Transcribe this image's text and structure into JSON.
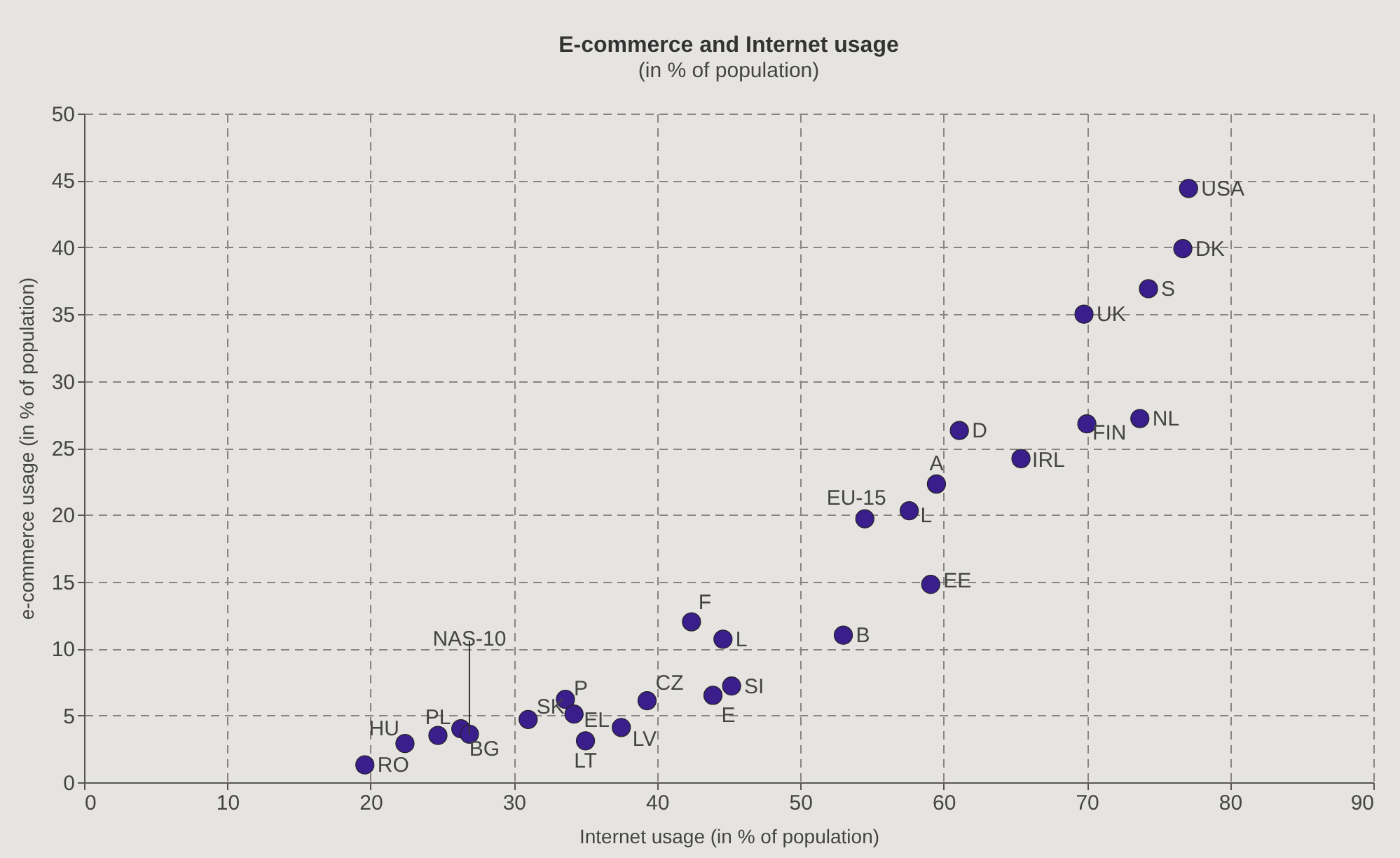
{
  "chart_data": {
    "type": "scatter",
    "title": "E-commerce and Internet usage",
    "subtitle": "(in % of population)",
    "xlabel": "Internet usage (in % of population)",
    "ylabel": "e-commerce usage (in % of population)",
    "x": [
      19.6,
      22.4,
      24.7,
      26.3,
      26.9,
      31.0,
      33.6,
      34.2,
      35.0,
      37.5,
      39.3,
      43.9,
      45.2,
      42.4,
      44.6,
      53.0,
      54.5,
      57.6,
      59.5,
      59.1,
      61.1,
      65.4,
      70.0,
      73.7,
      69.8,
      74.3,
      76.7,
      77.1
    ],
    "series": [
      {
        "color": "#3a1e8c",
        "values": [
          1.3,
          2.9,
          3.5,
          4.0,
          3.6,
          4.7,
          6.2,
          5.1,
          3.1,
          4.1,
          6.1,
          6.5,
          7.2,
          12.0,
          10.7,
          11.0,
          19.7,
          20.3,
          22.3,
          14.8,
          26.3,
          24.2,
          26.8,
          27.2,
          35.0,
          36.9,
          39.9,
          44.4
        ]
      }
    ],
    "annotations": [
      {
        "text": "RO",
        "x": 19.6,
        "y": 1.3
      },
      {
        "text": "HU",
        "x": 22.4,
        "y": 2.9
      },
      {
        "text": "PL",
        "x": 24.7,
        "y": 3.5
      },
      {
        "text": "BG",
        "x": 26.3,
        "y": 4.0
      },
      {
        "text": "NAS-10",
        "x": 26.9,
        "y": 3.6
      },
      {
        "text": "SK",
        "x": 31.0,
        "y": 4.7
      },
      {
        "text": "P",
        "x": 33.6,
        "y": 6.2
      },
      {
        "text": "EL",
        "x": 34.2,
        "y": 5.1
      },
      {
        "text": "LT",
        "x": 35.0,
        "y": 3.1
      },
      {
        "text": "LV",
        "x": 37.5,
        "y": 4.1
      },
      {
        "text": "CZ",
        "x": 39.3,
        "y": 6.1
      },
      {
        "text": "E",
        "x": 43.9,
        "y": 6.5
      },
      {
        "text": "SI",
        "x": 45.2,
        "y": 7.2
      },
      {
        "text": "F",
        "x": 42.4,
        "y": 12.0
      },
      {
        "text": "L",
        "x": 44.6,
        "y": 10.7
      },
      {
        "text": "B",
        "x": 53.0,
        "y": 11.0
      },
      {
        "text": "EU-15",
        "x": 54.5,
        "y": 19.7
      },
      {
        "text": "L",
        "x": 57.6,
        "y": 20.3
      },
      {
        "text": "A",
        "x": 59.5,
        "y": 22.3
      },
      {
        "text": "EE",
        "x": 59.1,
        "y": 14.8
      },
      {
        "text": "D",
        "x": 61.1,
        "y": 26.3
      },
      {
        "text": "IRL",
        "x": 65.4,
        "y": 24.2
      },
      {
        "text": "FIN",
        "x": 70.0,
        "y": 26.8
      },
      {
        "text": "NL",
        "x": 73.7,
        "y": 27.2
      },
      {
        "text": "UK",
        "x": 69.8,
        "y": 35.0
      },
      {
        "text": "S",
        "x": 74.3,
        "y": 36.9
      },
      {
        "text": "DK",
        "x": 76.7,
        "y": 39.9
      },
      {
        "text": "USA",
        "x": 77.1,
        "y": 44.4
      }
    ],
    "xlim": [
      0,
      90
    ],
    "xticks": [
      0,
      10,
      20,
      30,
      40,
      50,
      60,
      70,
      80,
      90
    ],
    "ylim": [
      0,
      50
    ],
    "yticks": [
      0,
      5,
      10,
      15,
      20,
      25,
      30,
      35,
      40,
      45,
      50
    ],
    "grid": true,
    "marker": "circle"
  }
}
